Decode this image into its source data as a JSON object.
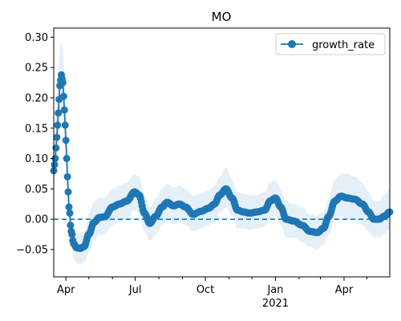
{
  "chart_data": {
    "type": "line",
    "title": "MO",
    "xlabel": "",
    "ylabel": "",
    "x_start": "2020-03-16",
    "x_end": "2021-05-31",
    "ylim": [
      -0.095,
      0.315
    ],
    "y_ticks": [
      -0.05,
      0.0,
      0.05,
      0.1,
      0.15,
      0.2,
      0.25,
      0.3
    ],
    "y_tick_labels": [
      "−0.05",
      "0.00",
      "0.05",
      "0.10",
      "0.15",
      "0.20",
      "0.25",
      "0.30"
    ],
    "x_major_ticks": [
      {
        "date": "2020-04-01",
        "label": "Apr",
        "sublabel": ""
      },
      {
        "date": "2020-07-01",
        "label": "Jul",
        "sublabel": ""
      },
      {
        "date": "2020-10-01",
        "label": "Oct",
        "sublabel": ""
      },
      {
        "date": "2021-01-01",
        "label": "Jan",
        "sublabel": "2021"
      },
      {
        "date": "2021-04-01",
        "label": "Apr",
        "sublabel": ""
      }
    ],
    "x_minor_ticks": [
      "2020-05-01",
      "2020-06-01",
      "2020-08-01",
      "2020-09-01",
      "2020-11-01",
      "2020-12-01",
      "2021-02-01",
      "2021-03-01",
      "2021-05-01"
    ],
    "reference_line": {
      "y": 0,
      "style": "dashed"
    },
    "legend": {
      "position": "top-right",
      "entries": [
        "growth_rate"
      ]
    },
    "grid": false,
    "series": [
      {
        "name": "growth_rate",
        "color": "#1f77b4",
        "band_color": "#c6dcef",
        "marker": "circle",
        "points": [
          {
            "x": "2020-03-16",
            "y": 0.08,
            "lo": 0.06,
            "hi": 0.11
          },
          {
            "x": "2020-03-18",
            "y": 0.1,
            "lo": 0.07,
            "hi": 0.14
          },
          {
            "x": "2020-03-20",
            "y": 0.135,
            "lo": 0.09,
            "hi": 0.19
          },
          {
            "x": "2020-03-22",
            "y": 0.175,
            "lo": 0.12,
            "hi": 0.24
          },
          {
            "x": "2020-03-24",
            "y": 0.22,
            "lo": 0.16,
            "hi": 0.28
          },
          {
            "x": "2020-03-26",
            "y": 0.238,
            "lo": 0.18,
            "hi": 0.295
          },
          {
            "x": "2020-03-28",
            "y": 0.225,
            "lo": 0.17,
            "hi": 0.28
          },
          {
            "x": "2020-03-30",
            "y": 0.18,
            "lo": 0.13,
            "hi": 0.23
          },
          {
            "x": "2020-04-01",
            "y": 0.13,
            "lo": 0.09,
            "hi": 0.17
          },
          {
            "x": "2020-04-03",
            "y": 0.07,
            "lo": 0.04,
            "hi": 0.11
          },
          {
            "x": "2020-04-05",
            "y": 0.02,
            "lo": 0.0,
            "hi": 0.05
          },
          {
            "x": "2020-04-08",
            "y": -0.02,
            "lo": -0.045,
            "hi": 0.01
          },
          {
            "x": "2020-04-11",
            "y": -0.04,
            "lo": -0.065,
            "hi": -0.015
          },
          {
            "x": "2020-04-15",
            "y": -0.047,
            "lo": -0.072,
            "hi": -0.022
          },
          {
            "x": "2020-04-20",
            "y": -0.048,
            "lo": -0.075,
            "hi": -0.022
          },
          {
            "x": "2020-04-25",
            "y": -0.045,
            "lo": -0.07,
            "hi": -0.02
          },
          {
            "x": "2020-05-01",
            "y": -0.025,
            "lo": -0.055,
            "hi": 0.01
          },
          {
            "x": "2020-05-08",
            "y": -0.005,
            "lo": -0.035,
            "hi": 0.03
          },
          {
            "x": "2020-05-15",
            "y": 0.003,
            "lo": -0.025,
            "hi": 0.035
          },
          {
            "x": "2020-05-22",
            "y": 0.004,
            "lo": -0.025,
            "hi": 0.035
          },
          {
            "x": "2020-06-01",
            "y": 0.02,
            "lo": -0.01,
            "hi": 0.05
          },
          {
            "x": "2020-06-10",
            "y": 0.025,
            "lo": -0.005,
            "hi": 0.055
          },
          {
            "x": "2020-06-20",
            "y": 0.03,
            "lo": 0.0,
            "hi": 0.06
          },
          {
            "x": "2020-06-30",
            "y": 0.045,
            "lo": 0.015,
            "hi": 0.075
          },
          {
            "x": "2020-07-06",
            "y": 0.04,
            "lo": 0.01,
            "hi": 0.07
          },
          {
            "x": "2020-07-13",
            "y": 0.01,
            "lo": -0.02,
            "hi": 0.04
          },
          {
            "x": "2020-07-20",
            "y": -0.007,
            "lo": -0.035,
            "hi": 0.02
          },
          {
            "x": "2020-07-28",
            "y": 0.005,
            "lo": -0.025,
            "hi": 0.035
          },
          {
            "x": "2020-08-05",
            "y": 0.02,
            "lo": -0.01,
            "hi": 0.05
          },
          {
            "x": "2020-08-12",
            "y": 0.028,
            "lo": -0.002,
            "hi": 0.058
          },
          {
            "x": "2020-08-20",
            "y": 0.022,
            "lo": -0.008,
            "hi": 0.052
          },
          {
            "x": "2020-08-28",
            "y": 0.025,
            "lo": -0.005,
            "hi": 0.055
          },
          {
            "x": "2020-09-05",
            "y": 0.02,
            "lo": -0.01,
            "hi": 0.05
          },
          {
            "x": "2020-09-15",
            "y": 0.008,
            "lo": -0.02,
            "hi": 0.038
          },
          {
            "x": "2020-09-25",
            "y": 0.013,
            "lo": -0.015,
            "hi": 0.042
          },
          {
            "x": "2020-10-05",
            "y": 0.018,
            "lo": -0.01,
            "hi": 0.048
          },
          {
            "x": "2020-10-13",
            "y": 0.025,
            "lo": -0.005,
            "hi": 0.055
          },
          {
            "x": "2020-10-20",
            "y": 0.04,
            "lo": 0.01,
            "hi": 0.07
          },
          {
            "x": "2020-10-28",
            "y": 0.05,
            "lo": 0.02,
            "hi": 0.085
          },
          {
            "x": "2020-11-05",
            "y": 0.035,
            "lo": 0.005,
            "hi": 0.065
          },
          {
            "x": "2020-11-12",
            "y": 0.015,
            "lo": -0.015,
            "hi": 0.045
          },
          {
            "x": "2020-11-20",
            "y": 0.012,
            "lo": -0.015,
            "hi": 0.042
          },
          {
            "x": "2020-11-28",
            "y": 0.01,
            "lo": -0.018,
            "hi": 0.04
          },
          {
            "x": "2020-12-08",
            "y": 0.012,
            "lo": -0.015,
            "hi": 0.04
          },
          {
            "x": "2020-12-18",
            "y": 0.015,
            "lo": -0.012,
            "hi": 0.045
          },
          {
            "x": "2020-12-25",
            "y": 0.03,
            "lo": 0.0,
            "hi": 0.06
          },
          {
            "x": "2021-01-01",
            "y": 0.035,
            "lo": 0.005,
            "hi": 0.065
          },
          {
            "x": "2021-01-08",
            "y": 0.02,
            "lo": -0.01,
            "hi": 0.05
          },
          {
            "x": "2021-01-15",
            "y": 0.0,
            "lo": -0.03,
            "hi": 0.03
          },
          {
            "x": "2021-01-25",
            "y": -0.003,
            "lo": -0.03,
            "hi": 0.025
          },
          {
            "x": "2021-02-05",
            "y": -0.01,
            "lo": -0.038,
            "hi": 0.02
          },
          {
            "x": "2021-02-15",
            "y": -0.02,
            "lo": -0.045,
            "hi": 0.008
          },
          {
            "x": "2021-02-25",
            "y": -0.022,
            "lo": -0.05,
            "hi": 0.006
          },
          {
            "x": "2021-03-05",
            "y": -0.015,
            "lo": -0.042,
            "hi": 0.012
          },
          {
            "x": "2021-03-12",
            "y": 0.005,
            "lo": -0.025,
            "hi": 0.035
          },
          {
            "x": "2021-03-20",
            "y": 0.03,
            "lo": 0.0,
            "hi": 0.065
          },
          {
            "x": "2021-03-28",
            "y": 0.038,
            "lo": 0.005,
            "hi": 0.075
          },
          {
            "x": "2021-04-05",
            "y": 0.035,
            "lo": 0.0,
            "hi": 0.075
          },
          {
            "x": "2021-04-15",
            "y": 0.033,
            "lo": -0.002,
            "hi": 0.07
          },
          {
            "x": "2021-04-25",
            "y": 0.025,
            "lo": -0.01,
            "hi": 0.06
          },
          {
            "x": "2021-05-03",
            "y": 0.012,
            "lo": -0.02,
            "hi": 0.045
          },
          {
            "x": "2021-05-10",
            "y": 0.0,
            "lo": -0.03,
            "hi": 0.03
          },
          {
            "x": "2021-05-17",
            "y": 0.0,
            "lo": -0.03,
            "hi": 0.03
          },
          {
            "x": "2021-05-24",
            "y": 0.005,
            "lo": -0.025,
            "hi": 0.04
          },
          {
            "x": "2021-05-31",
            "y": 0.012,
            "lo": -0.018,
            "hi": 0.05
          }
        ]
      }
    ]
  }
}
